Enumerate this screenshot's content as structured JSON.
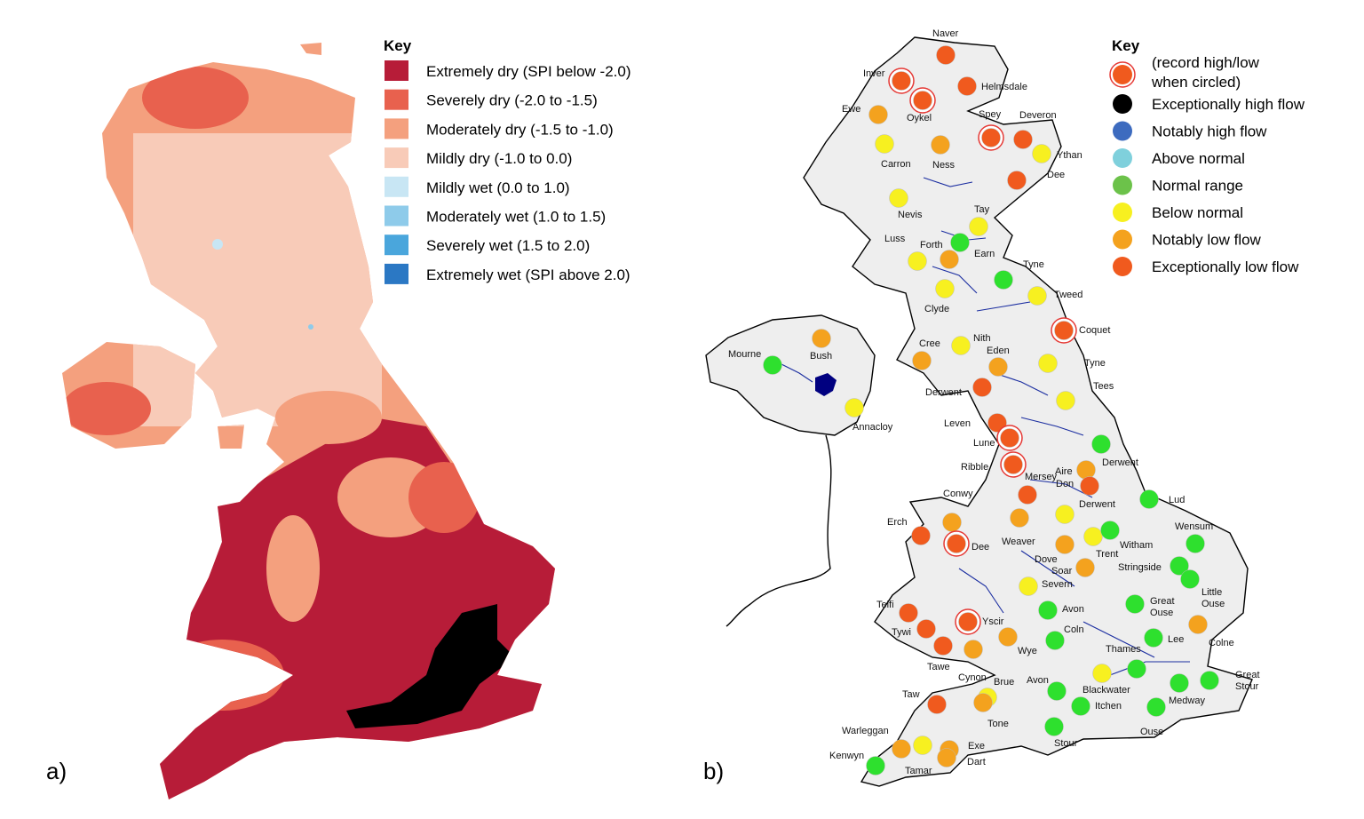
{
  "panel_a": {
    "label": "a)",
    "key_title": "Key",
    "legend": [
      {
        "label": "Extremely dry (SPI below -2.0)",
        "color": "#b71c38"
      },
      {
        "label": "Severely dry (-2.0 to -1.5)",
        "color": "#e8614e"
      },
      {
        "label": "Moderately dry (-1.5 to -1.0)",
        "color": "#f4a07e"
      },
      {
        "label": "Mildly dry (-1.0 to 0.0)",
        "color": "#f8cbb8"
      },
      {
        "label": "Mildly wet (0.0 to 1.0)",
        "color": "#c8e6f4"
      },
      {
        "label": "Moderately wet (1.0 to 1.5)",
        "color": "#8ecbea"
      },
      {
        "label": "Severely wet (1.5 to 2.0)",
        "color": "#4aa6dc"
      },
      {
        "label": "Extremely wet (SPI above 2.0)",
        "color": "#2b78c4"
      }
    ],
    "exceptional_dry_color": "#000000"
  },
  "panel_b": {
    "label": "b)",
    "key_title": "Key",
    "legend": [
      {
        "label_lines": [
          "(record high/low",
          "when circled)"
        ],
        "color": "#f05a1e",
        "circled": true
      },
      {
        "label_lines": [
          "Exceptionally high flow"
        ],
        "color": "#000000"
      },
      {
        "label_lines": [
          "Notably high flow"
        ],
        "color": "#3d6bbf"
      },
      {
        "label_lines": [
          "Above normal"
        ],
        "color": "#7fd0dc"
      },
      {
        "label_lines": [
          "Normal range"
        ],
        "color": "#6cc24a"
      },
      {
        "label_lines": [
          "Below normal"
        ],
        "color": "#f7f020"
      },
      {
        "label_lines": [
          "Notably low flow"
        ],
        "color": "#f4a21e"
      },
      {
        "label_lines": [
          "Exceptionally low flow"
        ],
        "color": "#f05a1e"
      }
    ],
    "colors": {
      "exlow": "#f05a1e",
      "notlow": "#f4a21e",
      "below": "#f7f020",
      "normal": "#2ee02e",
      "ring": "#e53935"
    },
    "rivers": [
      {
        "name": "Naver",
        "status": "exlow"
      },
      {
        "name": "Inver",
        "status": "exlow",
        "record": true
      },
      {
        "name": "Helmsdale",
        "status": "exlow"
      },
      {
        "name": "Oykel",
        "status": "exlow",
        "record": true
      },
      {
        "name": "Ewe",
        "status": "notlow"
      },
      {
        "name": "Spey",
        "status": "exlow",
        "record": true
      },
      {
        "name": "Deveron",
        "status": "exlow"
      },
      {
        "name": "Carron",
        "status": "below"
      },
      {
        "name": "Ness",
        "status": "notlow"
      },
      {
        "name": "Ythan",
        "status": "below"
      },
      {
        "name": "Dee",
        "status": "exlow"
      },
      {
        "name": "Nevis",
        "status": "below"
      },
      {
        "name": "Tay",
        "status": "below"
      },
      {
        "name": "Luss",
        "status": "below"
      },
      {
        "name": "Forth",
        "status": "notlow"
      },
      {
        "name": "Earn",
        "status": "normal"
      },
      {
        "name": "Tyne",
        "status": "normal"
      },
      {
        "name": "Tweed",
        "status": "below"
      },
      {
        "name": "Clyde",
        "status": "below"
      },
      {
        "name": "Coquet",
        "status": "exlow",
        "record": true
      },
      {
        "name": "Bush",
        "status": "notlow"
      },
      {
        "name": "Mourne",
        "status": "normal"
      },
      {
        "name": "Annacloy",
        "status": "below"
      },
      {
        "name": "Cree",
        "status": "notlow"
      },
      {
        "name": "Nith",
        "status": "below"
      },
      {
        "name": "Eden",
        "status": "notlow"
      },
      {
        "name": "Tyne",
        "status": "below"
      },
      {
        "name": "Derwent",
        "status": "exlow"
      },
      {
        "name": "Tees",
        "status": "below"
      },
      {
        "name": "Leven",
        "status": "exlow"
      },
      {
        "name": "Lune",
        "status": "exlow",
        "record": true
      },
      {
        "name": "Derwent",
        "status": "normal"
      },
      {
        "name": "Ribble",
        "status": "exlow",
        "record": true
      },
      {
        "name": "Aire",
        "status": "notlow"
      },
      {
        "name": "Mersey",
        "status": "exlow"
      },
      {
        "name": "Don",
        "status": "exlow"
      },
      {
        "name": "Conwy",
        "status": "notlow"
      },
      {
        "name": "Derwent",
        "status": "below"
      },
      {
        "name": "Lud",
        "status": "normal"
      },
      {
        "name": "Erch",
        "status": "exlow"
      },
      {
        "name": "Weaver",
        "status": "notlow"
      },
      {
        "name": "Dee",
        "status": "exlow",
        "record": true
      },
      {
        "name": "Trent",
        "status": "below"
      },
      {
        "name": "Witham",
        "status": "normal"
      },
      {
        "name": "Wensum",
        "status": "normal"
      },
      {
        "name": "Dove",
        "status": "notlow"
      },
      {
        "name": "Soar",
        "status": "notlow"
      },
      {
        "name": "Stringside",
        "status": "normal"
      },
      {
        "name": "Severn",
        "status": "below"
      },
      {
        "name": "Little Ouse",
        "status": "normal"
      },
      {
        "name": "Teifi",
        "status": "exlow"
      },
      {
        "name": "Avon",
        "status": "normal"
      },
      {
        "name": "Great Ouse",
        "status": "normal"
      },
      {
        "name": "Yscir",
        "status": "exlow",
        "record": true
      },
      {
        "name": "Tywi",
        "status": "exlow"
      },
      {
        "name": "Wye",
        "status": "notlow"
      },
      {
        "name": "Coln",
        "status": "normal"
      },
      {
        "name": "Lee",
        "status": "normal"
      },
      {
        "name": "Colne",
        "status": "notlow"
      },
      {
        "name": "Tawe",
        "status": "exlow"
      },
      {
        "name": "Cynon",
        "status": "notlow"
      },
      {
        "name": "Thames",
        "status": "normal"
      },
      {
        "name": "Great Stour",
        "status": "normal"
      },
      {
        "name": "Brue",
        "status": "below"
      },
      {
        "name": "Avon",
        "status": "normal"
      },
      {
        "name": "Blackwater",
        "status": "below"
      },
      {
        "name": "Medway",
        "status": "normal"
      },
      {
        "name": "Taw",
        "status": "exlow"
      },
      {
        "name": "Itchen",
        "status": "normal"
      },
      {
        "name": "Tone",
        "status": "notlow"
      },
      {
        "name": "Ouse",
        "status": "normal"
      },
      {
        "name": "Warleggan",
        "status": "notlow"
      },
      {
        "name": "Stour",
        "status": "normal"
      },
      {
        "name": "Exe",
        "status": "notlow"
      },
      {
        "name": "Kenwyn",
        "status": "normal"
      },
      {
        "name": "Tamar",
        "status": "below"
      },
      {
        "name": "Dart",
        "status": "notlow"
      }
    ]
  }
}
